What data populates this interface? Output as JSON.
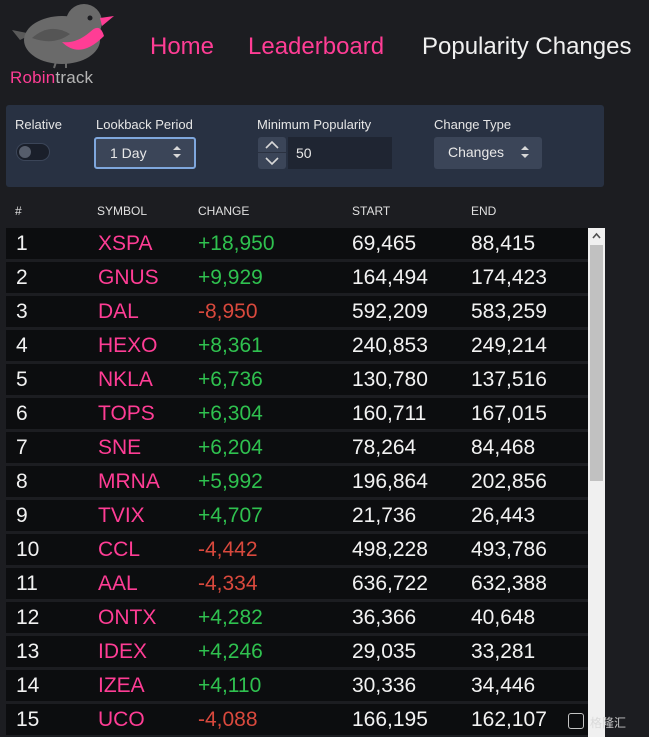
{
  "logo": {
    "brand_a": "Robin",
    "brand_b": "track"
  },
  "nav": {
    "home": "Home",
    "leaderboard": "Leaderboard",
    "popularity": "Popularity Changes"
  },
  "controls": {
    "relative_label": "Relative",
    "relative_on": false,
    "lookback_label": "Lookback Period",
    "lookback_value": "1 Day",
    "min_pop_label": "Minimum Popularity",
    "min_pop_value": "50",
    "change_type_label": "Change Type",
    "change_type_value": "Changes"
  },
  "table": {
    "headers": {
      "rank": "#",
      "symbol": "SYMBOL",
      "change": "CHANGE",
      "start": "START",
      "end": "END"
    },
    "rows": [
      {
        "rank": "1",
        "symbol": "XSPA",
        "change": "+18,950",
        "start": "69,465",
        "end": "88,415"
      },
      {
        "rank": "2",
        "symbol": "GNUS",
        "change": "+9,929",
        "start": "164,494",
        "end": "174,423"
      },
      {
        "rank": "3",
        "symbol": "DAL",
        "change": "-8,950",
        "start": "592,209",
        "end": "583,259"
      },
      {
        "rank": "4",
        "symbol": "HEXO",
        "change": "+8,361",
        "start": "240,853",
        "end": "249,214"
      },
      {
        "rank": "5",
        "symbol": "NKLA",
        "change": "+6,736",
        "start": "130,780",
        "end": "137,516"
      },
      {
        "rank": "6",
        "symbol": "TOPS",
        "change": "+6,304",
        "start": "160,711",
        "end": "167,015"
      },
      {
        "rank": "7",
        "symbol": "SNE",
        "change": "+6,204",
        "start": "78,264",
        "end": "84,468"
      },
      {
        "rank": "8",
        "symbol": "MRNA",
        "change": "+5,992",
        "start": "196,864",
        "end": "202,856"
      },
      {
        "rank": "9",
        "symbol": "TVIX",
        "change": "+4,707",
        "start": "21,736",
        "end": "26,443"
      },
      {
        "rank": "10",
        "symbol": "CCL",
        "change": "-4,442",
        "start": "498,228",
        "end": "493,786"
      },
      {
        "rank": "11",
        "symbol": "AAL",
        "change": "-4,334",
        "start": "636,722",
        "end": "632,388"
      },
      {
        "rank": "12",
        "symbol": "ONTX",
        "change": "+4,282",
        "start": "36,366",
        "end": "40,648"
      },
      {
        "rank": "13",
        "symbol": "IDEX",
        "change": "+4,246",
        "start": "29,035",
        "end": "33,281"
      },
      {
        "rank": "14",
        "symbol": "IZEA",
        "change": "+4,110",
        "start": "30,336",
        "end": "34,446"
      },
      {
        "rank": "15",
        "symbol": "UCO",
        "change": "-4,088",
        "start": "166,195",
        "end": "162,107"
      }
    ]
  },
  "colors": {
    "accent": "#ff3d95",
    "positive": "#2fc14f",
    "negative": "#d9493d",
    "panel": "#283142"
  },
  "watermark": {
    "text": "格隆汇"
  }
}
